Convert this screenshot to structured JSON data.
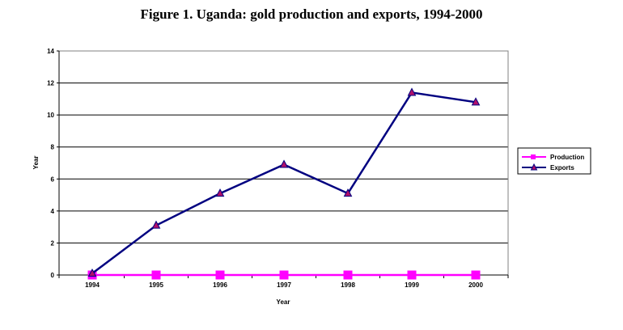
{
  "chart_data": {
    "type": "line",
    "title": "Figure 1.  Uganda: gold production and exports, 1994-2000",
    "xlabel": "Year",
    "ylabel": "Year",
    "categories": [
      "1994",
      "1995",
      "1996",
      "1997",
      "1998",
      "1999",
      "2000"
    ],
    "ylim": [
      0,
      14
    ],
    "yticks": [
      0,
      2,
      4,
      6,
      8,
      10,
      12,
      14
    ],
    "grid": true,
    "legend_position": "right",
    "series": [
      {
        "name": "Production",
        "values": [
          0,
          0,
          0,
          0,
          0,
          0,
          0
        ],
        "color": "#ff00ff",
        "marker": "square"
      },
      {
        "name": "Exports",
        "values": [
          0.1,
          3.1,
          5.1,
          6.9,
          5.1,
          11.4,
          10.8
        ],
        "color": "#000080",
        "marker": "triangle",
        "marker_fill": "#b0106a"
      }
    ]
  }
}
